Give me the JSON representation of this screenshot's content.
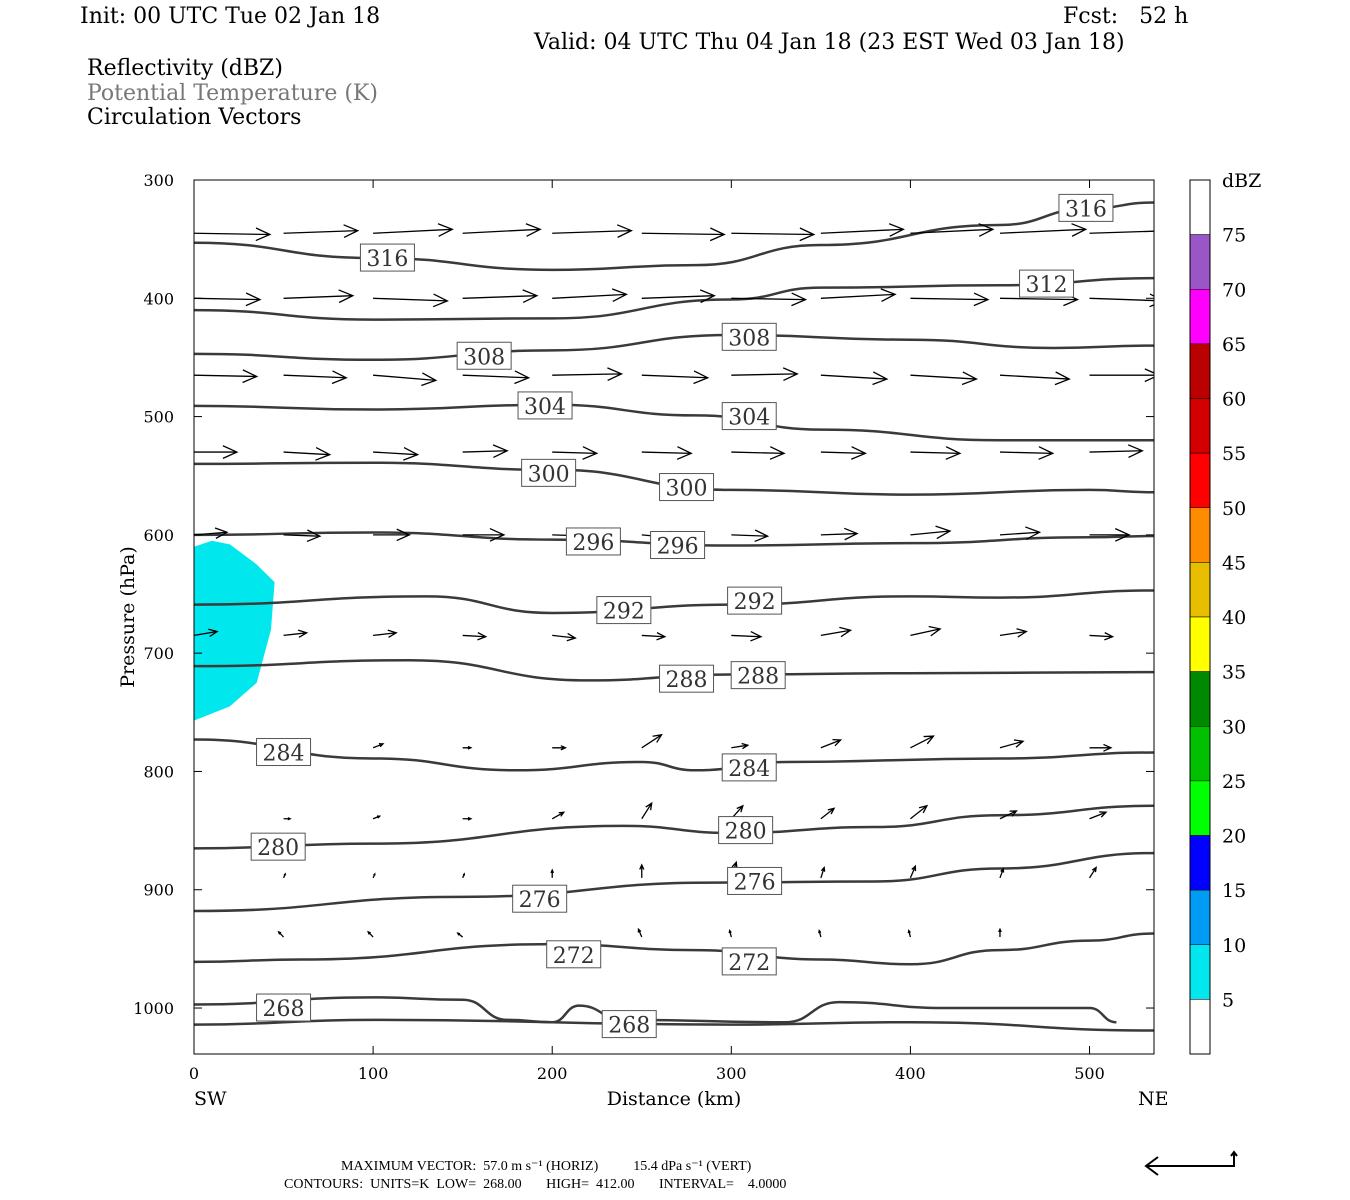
{
  "header": {
    "init": "Init: 00 UTC Tue 02 Jan 18",
    "fcst": "Fcst:   52 h",
    "valid": "Valid: 04 UTC Thu 04 Jan 18 (23 EST Wed 03 Jan 18)"
  },
  "legend": {
    "l1": "Reflectivity (dBZ)",
    "l2": "Potential Temperature (K)",
    "l3": "Circulation Vectors"
  },
  "footer": {
    "max_vector": "MAXIMUM VECTOR:  57.0 m s⁻¹ (HORIZ)          15.4 dPa s⁻¹ (VERT)",
    "contours": "CONTOURS:  UNITS=K  LOW=  268.00       HIGH=  412.00       INTERVAL=    4.0000"
  },
  "chart_data": {
    "type": "cross-section",
    "xlabel": "Distance (km)",
    "ylabel": "Pressure (hPa)",
    "xlim": [
      0,
      536
    ],
    "ylim": [
      1039,
      300
    ],
    "xticks": [
      0,
      100,
      200,
      300,
      400,
      500
    ],
    "yticks": [
      300,
      400,
      500,
      600,
      700,
      800,
      900,
      1000
    ],
    "left_end": "SW",
    "right_end": "NE",
    "colorbar": {
      "title": "dBZ",
      "labels": [
        "75",
        "70",
        "65",
        "60",
        "55",
        "50",
        "45",
        "40",
        "35",
        "30",
        "25",
        "20",
        "15",
        "10",
        "5"
      ],
      "colors": [
        "#ffffff",
        "#9a55c8",
        "#ff00ff",
        "#bb0000",
        "#d40000",
        "#ff0000",
        "#ff8c00",
        "#e8be00",
        "#ffff00",
        "#008800",
        "#00c000",
        "#00ff00",
        "#0000ff",
        "#009cf4",
        "#00e8ee",
        "#ffffff"
      ]
    },
    "reflectivity_region": {
      "dbz": "5-10",
      "color": "#00e8ee",
      "polygon": [
        [
          0,
          610
        ],
        [
          10,
          605
        ],
        [
          20,
          608
        ],
        [
          35,
          625
        ],
        [
          45,
          640
        ],
        [
          43,
          680
        ],
        [
          35,
          725
        ],
        [
          20,
          745
        ],
        [
          0,
          757
        ]
      ]
    },
    "theta_contours": [
      {
        "value": "316",
        "points": [
          [
            0,
            353
          ],
          [
            100,
            366
          ],
          [
            200,
            376
          ],
          [
            280,
            372
          ],
          [
            350,
            355
          ],
          [
            450,
            338
          ],
          [
            500,
            324
          ],
          [
            536,
            319
          ]
        ],
        "labels": [
          [
            108,
            366
          ],
          [
            498,
            324
          ]
        ]
      },
      {
        "value": "312",
        "points": [
          [
            0,
            410
          ],
          [
            100,
            418
          ],
          [
            200,
            417
          ],
          [
            300,
            401
          ],
          [
            350,
            391
          ],
          [
            450,
            389
          ],
          [
            536,
            383
          ]
        ],
        "labels": [
          [
            476,
            388
          ]
        ]
      },
      {
        "value": "308",
        "points": [
          [
            0,
            447
          ],
          [
            100,
            452
          ],
          [
            200,
            444
          ],
          [
            300,
            431
          ],
          [
            400,
            435
          ],
          [
            480,
            442
          ],
          [
            536,
            440
          ]
        ],
        "labels": [
          [
            162,
            449
          ],
          [
            310,
            433
          ]
        ]
      },
      {
        "value": "304",
        "points": [
          [
            0,
            491
          ],
          [
            100,
            494
          ],
          [
            200,
            490
          ],
          [
            280,
            499
          ],
          [
            350,
            511
          ],
          [
            450,
            520
          ],
          [
            536,
            520
          ]
        ],
        "labels": [
          [
            196,
            491
          ],
          [
            310,
            500
          ]
        ]
      },
      {
        "value": "300",
        "points": [
          [
            0,
            540
          ],
          [
            100,
            539
          ],
          [
            200,
            545
          ],
          [
            300,
            562
          ],
          [
            400,
            566
          ],
          [
            500,
            562
          ],
          [
            536,
            564
          ]
        ],
        "labels": [
          [
            198,
            548
          ],
          [
            275,
            560
          ]
        ]
      },
      {
        "value": "296",
        "points": [
          [
            0,
            600
          ],
          [
            100,
            598
          ],
          [
            200,
            604
          ],
          [
            300,
            609
          ],
          [
            400,
            607
          ],
          [
            500,
            602
          ],
          [
            536,
            601
          ]
        ],
        "labels": [
          [
            223,
            606
          ],
          [
            270,
            609
          ]
        ]
      },
      {
        "value": "292",
        "points": [
          [
            0,
            659
          ],
          [
            130,
            652
          ],
          [
            200,
            666
          ],
          [
            300,
            659
          ],
          [
            400,
            652
          ],
          [
            450,
            653
          ],
          [
            536,
            647
          ]
        ],
        "labels": [
          [
            240,
            664
          ],
          [
            313,
            656
          ]
        ]
      },
      {
        "value": "288",
        "points": [
          [
            0,
            711
          ],
          [
            120,
            706
          ],
          [
            220,
            723
          ],
          [
            300,
            718
          ],
          [
            400,
            717
          ],
          [
            536,
            716
          ]
        ],
        "labels": [
          [
            275,
            722
          ],
          [
            315,
            719
          ]
        ]
      },
      {
        "value": "284",
        "points": [
          [
            0,
            773
          ],
          [
            100,
            789
          ],
          [
            180,
            799
          ],
          [
            250,
            792
          ],
          [
            280,
            799
          ],
          [
            330,
            792
          ],
          [
            450,
            789
          ],
          [
            536,
            784
          ]
        ],
        "labels": [
          [
            50,
            784
          ],
          [
            310,
            797
          ]
        ]
      },
      {
        "value": "280",
        "points": [
          [
            0,
            865
          ],
          [
            100,
            861
          ],
          [
            240,
            846
          ],
          [
            300,
            852
          ],
          [
            380,
            847
          ],
          [
            450,
            837
          ],
          [
            536,
            829
          ]
        ],
        "labels": [
          [
            47,
            864
          ],
          [
            308,
            850
          ]
        ]
      },
      {
        "value": "276",
        "points": [
          [
            0,
            918
          ],
          [
            150,
            906
          ],
          [
            290,
            894
          ],
          [
            380,
            893
          ],
          [
            450,
            882
          ],
          [
            536,
            869
          ]
        ],
        "labels": [
          [
            193,
            908
          ],
          [
            313,
            893
          ]
        ]
      },
      {
        "value": "272",
        "points": [
          [
            0,
            961
          ],
          [
            60,
            959
          ],
          [
            200,
            946
          ],
          [
            280,
            951
          ],
          [
            350,
            959
          ],
          [
            400,
            963
          ],
          [
            450,
            951
          ],
          [
            500,
            943
          ],
          [
            536,
            937
          ]
        ],
        "labels": [
          [
            212,
            955
          ],
          [
            310,
            961
          ]
        ]
      },
      {
        "value": "268",
        "points": [
          [
            0,
            997
          ],
          [
            100,
            991
          ],
          [
            150,
            993
          ],
          [
            175,
            1010
          ],
          [
            200,
            1012
          ],
          [
            215,
            998
          ],
          [
            240,
            1010
          ],
          [
            330,
            1012
          ],
          [
            360,
            995
          ],
          [
            420,
            1000
          ],
          [
            500,
            1000
          ],
          [
            515,
            1012
          ]
        ],
        "labels": [
          [
            50,
            1000
          ],
          [
            243,
            1014
          ]
        ]
      },
      {
        "value": "268",
        "points": [
          [
            0,
            1014
          ],
          [
            100,
            1010
          ],
          [
            300,
            1014
          ],
          [
            400,
            1012
          ],
          [
            536,
            1019
          ]
        ],
        "labels": []
      }
    ],
    "vector_columns_km": [
      0,
      50,
      100,
      150,
      200,
      250,
      300,
      350,
      400,
      450,
      500
    ],
    "vector_rows": [
      {
        "p": 345,
        "uv": [
          [
            46,
            -1
          ],
          [
            45,
            2
          ],
          [
            48,
            3
          ],
          [
            47,
            3
          ],
          [
            48,
            2
          ],
          [
            50,
            -1
          ],
          [
            50,
            -1
          ],
          [
            50,
            3
          ],
          [
            50,
            3
          ],
          [
            52,
            3
          ],
          [
            50,
            2
          ]
        ]
      },
      {
        "p": 400,
        "uv": [
          [
            40,
            -1
          ],
          [
            42,
            2
          ],
          [
            45,
            -2
          ],
          [
            45,
            2
          ],
          [
            45,
            3
          ],
          [
            44,
            2
          ],
          [
            45,
            -1
          ],
          [
            45,
            3
          ],
          [
            47,
            -1
          ],
          [
            47,
            -1
          ],
          [
            45,
            -2
          ]
        ]
      },
      {
        "p": 465,
        "uv": [
          [
            38,
            -1
          ],
          [
            38,
            -2
          ],
          [
            38,
            -4
          ],
          [
            40,
            -2
          ],
          [
            42,
            1
          ],
          [
            40,
            -2
          ],
          [
            40,
            1
          ],
          [
            40,
            -3
          ],
          [
            40,
            -3
          ],
          [
            42,
            -3
          ],
          [
            42,
            0
          ]
        ]
      },
      {
        "p": 530,
        "uv": [
          [
            26,
            0
          ],
          [
            28,
            -2
          ],
          [
            27,
            -2
          ],
          [
            27,
            1
          ],
          [
            27,
            -1
          ],
          [
            30,
            -1
          ],
          [
            32,
            -1
          ],
          [
            27,
            -1
          ],
          [
            30,
            -1
          ],
          [
            32,
            -1
          ],
          [
            32,
            1
          ]
        ]
      },
      {
        "p": 600,
        "uv": [
          [
            20,
            2
          ],
          [
            22,
            -1
          ],
          [
            22,
            0
          ],
          [
            25,
            0
          ],
          [
            25,
            -1
          ],
          [
            25,
            -3
          ],
          [
            22,
            -1
          ],
          [
            22,
            1
          ],
          [
            24,
            3
          ],
          [
            24,
            2
          ],
          [
            24,
            0
          ]
        ]
      },
      {
        "p": 685,
        "uv": [
          [
            14,
            3
          ],
          [
            14,
            2
          ],
          [
            14,
            2
          ],
          [
            14,
            -1
          ],
          [
            14,
            -2
          ],
          [
            14,
            -1
          ],
          [
            18,
            -1
          ],
          [
            18,
            4
          ],
          [
            18,
            5
          ],
          [
            16,
            3
          ],
          [
            14,
            -1
          ]
        ]
      },
      {
        "p": 780,
        "uv": [
          [
            0,
            0
          ],
          [
            8,
            0
          ],
          [
            6,
            3
          ],
          [
            5,
            0
          ],
          [
            8,
            0
          ],
          [
            12,
            10
          ],
          [
            10,
            2
          ],
          [
            12,
            6
          ],
          [
            14,
            9
          ],
          [
            14,
            5
          ],
          [
            13,
            0
          ]
        ]
      },
      {
        "p": 840,
        "uv": [
          [
            0,
            0
          ],
          [
            4,
            0
          ],
          [
            4,
            2
          ],
          [
            5,
            0
          ],
          [
            7,
            5
          ],
          [
            6,
            12
          ],
          [
            7,
            10
          ],
          [
            8,
            8
          ],
          [
            10,
            10
          ],
          [
            10,
            6
          ],
          [
            10,
            5
          ]
        ]
      },
      {
        "p": 890,
        "uv": [
          [
            0,
            0
          ],
          [
            1,
            3
          ],
          [
            1,
            3
          ],
          [
            1,
            3
          ],
          [
            0,
            6
          ],
          [
            0,
            10
          ],
          [
            3,
            12
          ],
          [
            2,
            8
          ],
          [
            3,
            9
          ],
          [
            2,
            7
          ],
          [
            4,
            8
          ]
        ]
      },
      {
        "p": 940,
        "uv": [
          [
            0,
            0
          ],
          [
            -3,
            4
          ],
          [
            -3,
            4
          ],
          [
            -3,
            3
          ],
          [
            0,
            0
          ],
          [
            -2,
            6
          ],
          [
            -1,
            5
          ],
          [
            -1,
            5
          ],
          [
            -1,
            5
          ],
          [
            0,
            6
          ],
          [
            0,
            0
          ]
        ]
      }
    ]
  }
}
